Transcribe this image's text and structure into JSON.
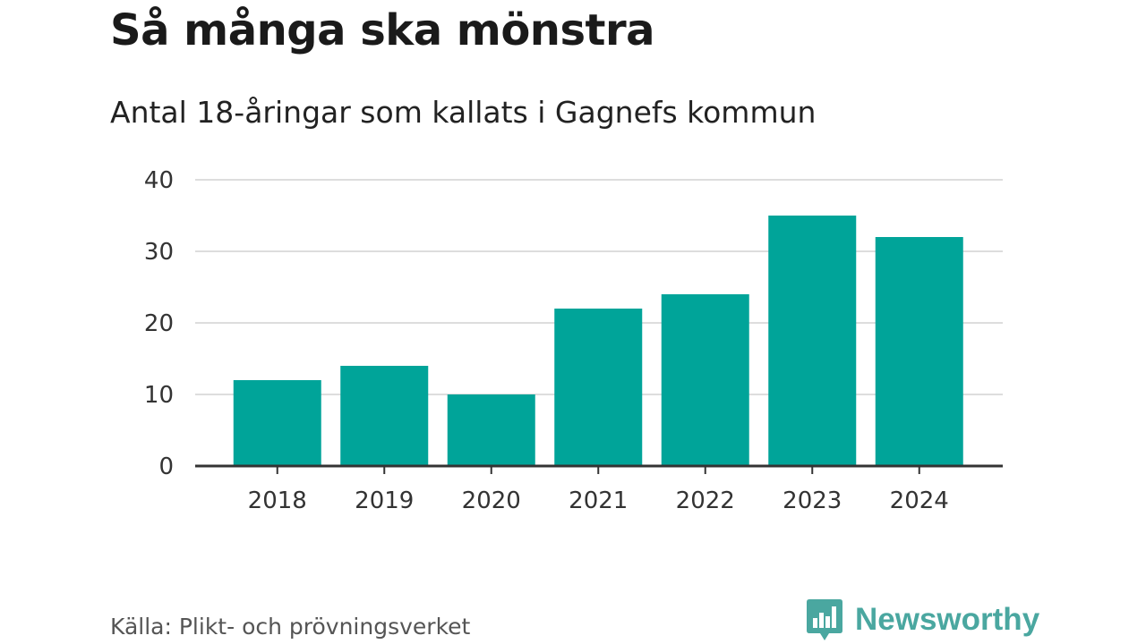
{
  "title": "Så många ska mönstra",
  "subtitle": "Antal 18-åringar som kallats i Gagnefs kommun",
  "source": "Källa: Plikt- och prövningsverket",
  "brand": {
    "name": "Newsworthy",
    "icon": "bar-chart-speech-bubble-icon",
    "color": "#4aa7a0"
  },
  "colors": {
    "bar": "#00a499",
    "grid": "#dddddd",
    "axis": "#333333"
  },
  "chart_data": {
    "type": "bar",
    "categories": [
      "2018",
      "2019",
      "2020",
      "2021",
      "2022",
      "2023",
      "2024"
    ],
    "values": [
      12,
      14,
      10,
      22,
      24,
      35,
      32
    ],
    "ylim": [
      0,
      40
    ],
    "yticks": [
      0,
      10,
      20,
      30,
      40
    ],
    "grid": true,
    "legend": "none"
  }
}
